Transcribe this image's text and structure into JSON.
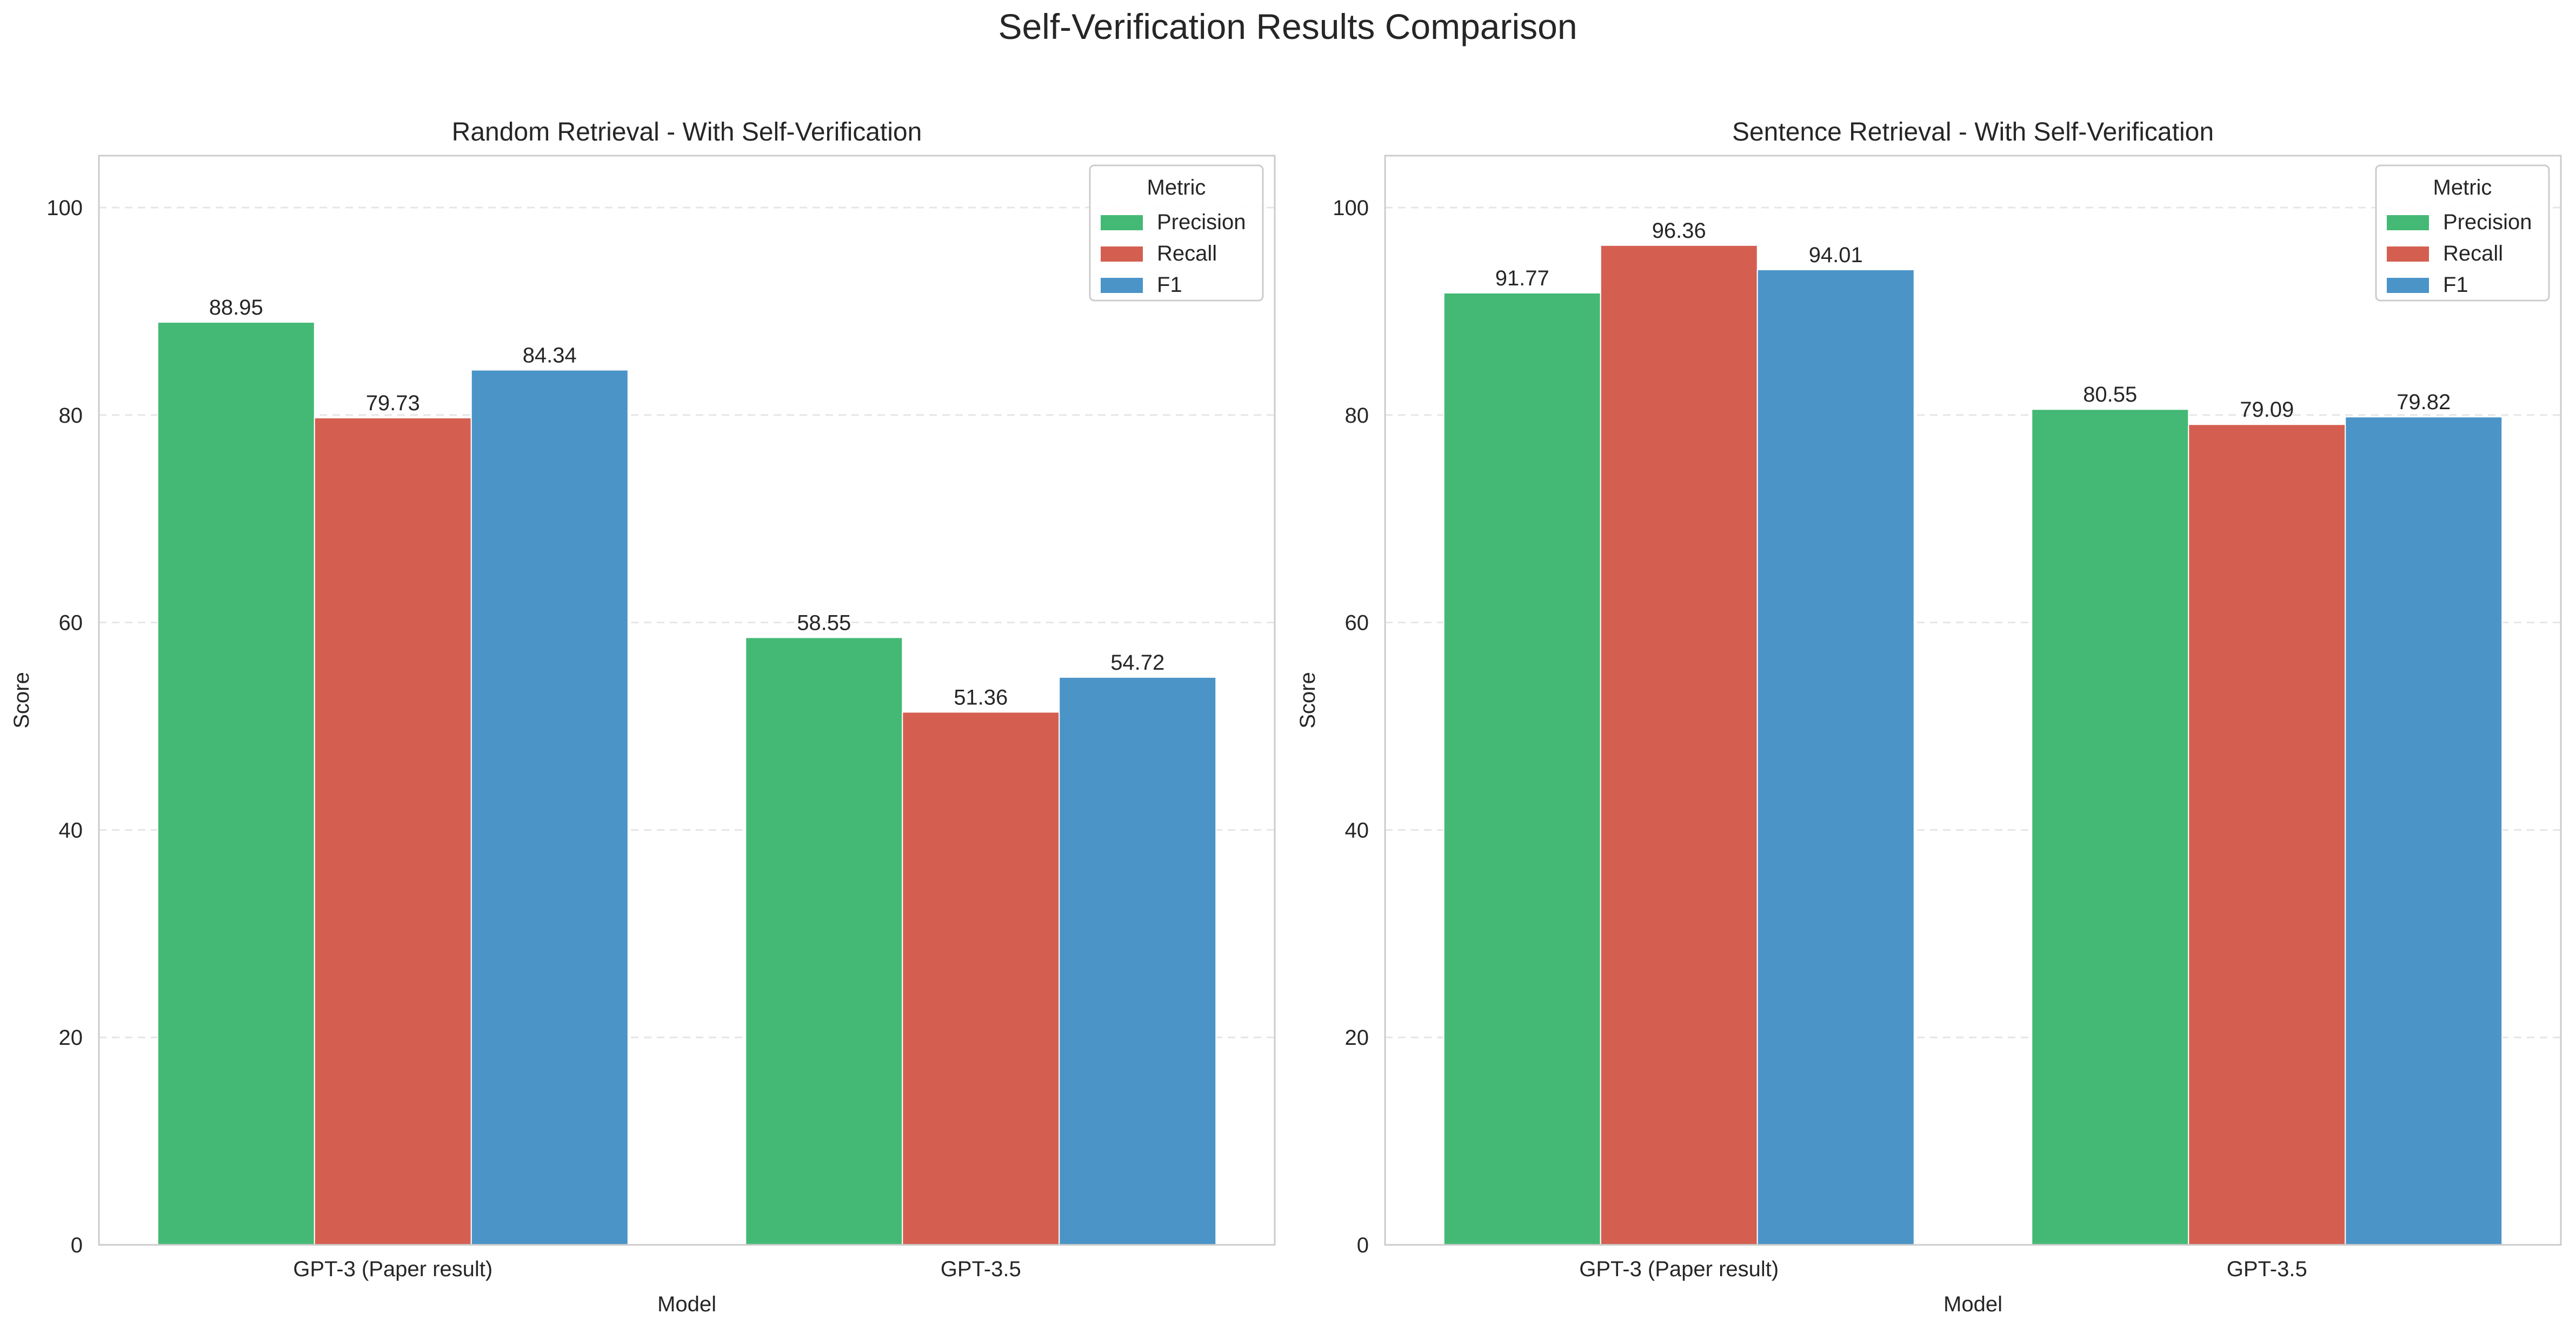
{
  "figure": {
    "title": "Self-Verification Results Comparison"
  },
  "colors": {
    "Precision": "#44b975",
    "Recall": "#d45f51",
    "F1": "#4a94c8",
    "grid": "#e6e6e6",
    "spine": "#cccccc",
    "text": "#262626"
  },
  "chart_data": [
    {
      "type": "bar",
      "title": "Random Retrieval - With Self-Verification",
      "xlabel": "Model",
      "ylabel": "Score",
      "categories": [
        "GPT-3 (Paper result)",
        "GPT-3.5"
      ],
      "series": [
        {
          "name": "Precision",
          "values": [
            88.95,
            58.55
          ],
          "labels": [
            "88.95",
            "58.55"
          ]
        },
        {
          "name": "Recall",
          "values": [
            79.73,
            51.36
          ],
          "labels": [
            "79.73",
            "51.36"
          ]
        },
        {
          "name": "F1",
          "values": [
            84.34,
            54.72
          ],
          "labels": [
            "84.34",
            "54.72"
          ]
        }
      ],
      "ylim": [
        0,
        105
      ],
      "yticks": [
        0,
        20,
        40,
        60,
        80,
        100
      ],
      "ytick_labels": [
        "0",
        "20",
        "40",
        "60",
        "80",
        "100"
      ],
      "grid": "y, dashed",
      "legend": {
        "title": "Metric",
        "placement": "top-right"
      }
    },
    {
      "type": "bar",
      "title": "Sentence Retrieval - With Self-Verification",
      "xlabel": "Model",
      "ylabel": "Score",
      "categories": [
        "GPT-3 (Paper result)",
        "GPT-3.5"
      ],
      "series": [
        {
          "name": "Precision",
          "values": [
            91.77,
            80.55
          ],
          "labels": [
            "91.77",
            "80.55"
          ]
        },
        {
          "name": "Recall",
          "values": [
            96.36,
            79.09
          ],
          "labels": [
            "96.36",
            "79.09"
          ]
        },
        {
          "name": "F1",
          "values": [
            94.01,
            79.82
          ],
          "labels": [
            "94.01",
            "79.82"
          ]
        }
      ],
      "ylim": [
        0,
        105
      ],
      "yticks": [
        0,
        20,
        40,
        60,
        80,
        100
      ],
      "ytick_labels": [
        "0",
        "20",
        "40",
        "60",
        "80",
        "100"
      ],
      "grid": "y, dashed",
      "legend": {
        "title": "Metric",
        "placement": "top-right"
      }
    }
  ]
}
